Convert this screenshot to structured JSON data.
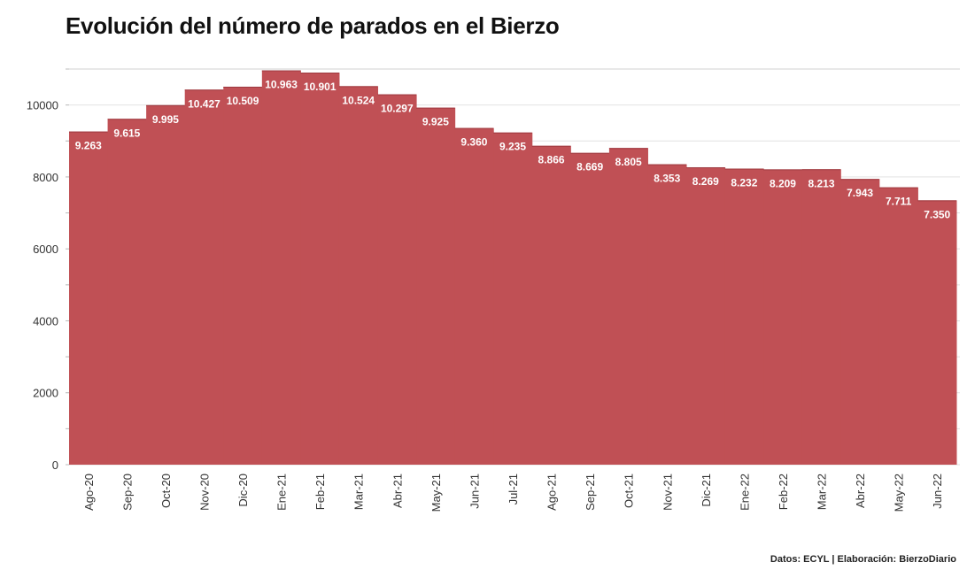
{
  "title": "Evolución del número de parados en el Bierzo",
  "source": "Datos: ECYL | Elaboración: BierzoDiario",
  "chart_data": {
    "type": "bar",
    "title": "Evolución del número de parados en el Bierzo",
    "categories": [
      "Ago-20",
      "Sep-20",
      "Oct-20",
      "Nov-20",
      "Dic-20",
      "Ene-21",
      "Feb-21",
      "Mar-21",
      "Abr-21",
      "May-21",
      "Jun-21",
      "Jul-21",
      "Ago-21",
      "Sep-21",
      "Oct-21",
      "Nov-21",
      "Dic-21",
      "Ene-22",
      "Feb-22",
      "Mar-22",
      "Abr-22",
      "May-22",
      "Jun-22"
    ],
    "values": [
      9263,
      9615,
      9995,
      10427,
      10509,
      10963,
      10901,
      10524,
      10297,
      9925,
      9360,
      9235,
      8866,
      8669,
      8805,
      8353,
      8269,
      8232,
      8209,
      8213,
      7943,
      7711,
      7350
    ],
    "value_labels": [
      "9.263",
      "9.615",
      "9.995",
      "10.427",
      "10.509",
      "10.963",
      "10.901",
      "10.524",
      "10.297",
      "9.925",
      "9.360",
      "9.235",
      "8.866",
      "8.669",
      "8.805",
      "8.353",
      "8.269",
      "8.232",
      "8.209",
      "8.213",
      "7.943",
      "7.711",
      "7.350"
    ],
    "yticks": [
      0,
      2000,
      4000,
      6000,
      8000,
      10000
    ],
    "ylim": [
      0,
      11000
    ],
    "xlabel": "",
    "ylabel": "",
    "grid": true,
    "bar_color": "#c05055"
  }
}
